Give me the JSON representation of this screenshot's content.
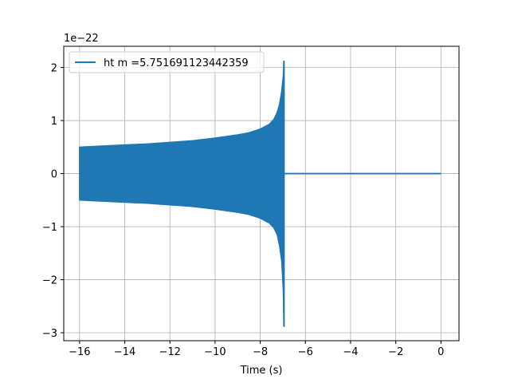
{
  "chart_data": {
    "type": "line",
    "xlabel": "Time (s)",
    "ylabel": "",
    "offset_label": "1e−22",
    "xlim": [
      -16.7,
      0.8
    ],
    "ylim": [
      -3.15,
      2.4
    ],
    "xticks": [
      -16,
      -14,
      -12,
      -10,
      -8,
      -6,
      -4,
      -2,
      0
    ],
    "xtick_labels": [
      "−16",
      "−14",
      "−12",
      "−10",
      "−8",
      "−6",
      "−4",
      "−2",
      "0"
    ],
    "yticks": [
      -3,
      -2,
      -1,
      0,
      1,
      2
    ],
    "ytick_labels": [
      "−3",
      "−2",
      "−1",
      "0",
      "1",
      "2"
    ],
    "grid": true,
    "legend_position": "top-left",
    "series": [
      {
        "name": "ht m =5.751691123442359",
        "color": "#1f77b4",
        "description": "chirp waveform, strain in units of 1e-22",
        "envelope_upper": {
          "x": [
            -16.0,
            -15.0,
            -14.0,
            -13.0,
            -12.0,
            -11.0,
            -10.0,
            -9.0,
            -8.5,
            -8.0,
            -7.6,
            -7.4,
            -7.25,
            -7.15,
            -7.05,
            -6.98,
            -6.95
          ],
          "y": [
            0.5,
            0.52,
            0.54,
            0.56,
            0.59,
            0.62,
            0.67,
            0.73,
            0.77,
            0.84,
            0.93,
            1.02,
            1.15,
            1.3,
            1.55,
            1.85,
            2.12
          ]
        },
        "envelope_lower": {
          "x": [
            -16.0,
            -15.0,
            -14.0,
            -13.0,
            -12.0,
            -11.0,
            -10.0,
            -9.0,
            -8.5,
            -8.0,
            -7.6,
            -7.4,
            -7.25,
            -7.15,
            -7.05,
            -6.98,
            -6.95
          ],
          "y": [
            -0.5,
            -0.52,
            -0.54,
            -0.56,
            -0.59,
            -0.62,
            -0.67,
            -0.73,
            -0.77,
            -0.84,
            -0.93,
            -1.02,
            -1.15,
            -1.35,
            -1.65,
            -2.2,
            -2.88
          ]
        },
        "post_merger": {
          "x": [
            -6.95,
            0.0
          ],
          "y": [
            0.0,
            0.0
          ]
        }
      }
    ]
  }
}
